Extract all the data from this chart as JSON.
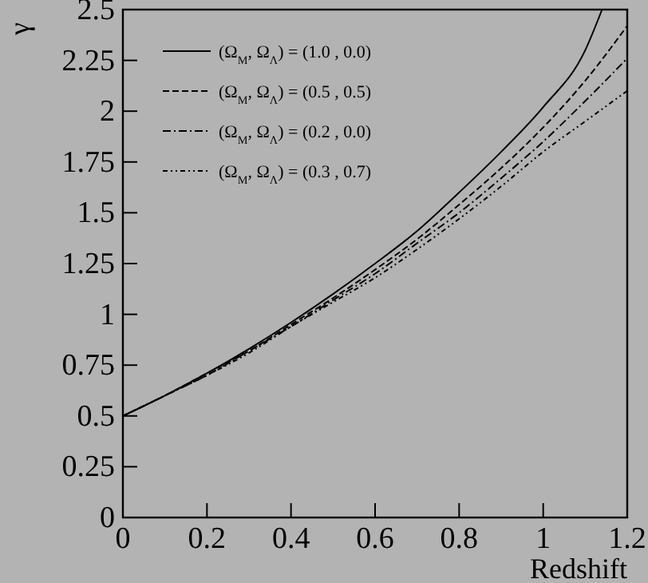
{
  "chart_data": {
    "type": "line",
    "xlabel": "Redshift",
    "ylabel": "γ",
    "xlim": [
      0,
      1.2
    ],
    "ylim": [
      0,
      2.5
    ],
    "xticks": [
      0,
      0.2,
      0.4,
      0.6,
      0.8,
      1,
      1.2
    ],
    "yticks": [
      0,
      0.25,
      0.5,
      0.75,
      1,
      1.25,
      1.5,
      1.75,
      2,
      2.25,
      2.5
    ],
    "x": [
      0,
      0.1,
      0.2,
      0.3,
      0.4,
      0.5,
      0.6,
      0.7,
      0.8,
      0.9,
      1.0,
      1.1,
      1.2
    ],
    "legend": "top left",
    "grid": false,
    "marker": "none",
    "series": [
      {
        "name": "(Ω$_{M}$, Ω$_{Λ}$) = (1.0 , 0.0)",
        "color": "#000000",
        "line_style": "solid",
        "x": [
          0,
          0.1,
          0.2,
          0.3,
          0.4,
          0.5,
          0.6,
          0.7,
          0.8,
          0.9,
          1.0,
          1.1,
          1.14
        ],
        "values": [
          0.5,
          0.6,
          0.71,
          0.83,
          0.96,
          1.1,
          1.25,
          1.41,
          1.6,
          1.8,
          2.02,
          2.3,
          2.5
        ]
      },
      {
        "name": "(Ω$_{M}$, Ω$_{Λ}$) = (0.5 , 0.5)",
        "color": "#000000",
        "line_style": "dashed",
        "values": [
          0.5,
          0.6,
          0.71,
          0.82,
          0.95,
          1.08,
          1.22,
          1.37,
          1.54,
          1.72,
          1.92,
          2.15,
          2.42
        ]
      },
      {
        "name": "(Ω$_{M}$, Ω$_{Λ}$) = (0.2 , 0.0)",
        "color": "#000000",
        "line_style": "dashdot",
        "values": [
          0.5,
          0.6,
          0.7,
          0.82,
          0.94,
          1.07,
          1.2,
          1.35,
          1.5,
          1.67,
          1.85,
          2.05,
          2.26
        ]
      },
      {
        "name": "(Ω$_{M}$, Ω$_{Λ}$) = (0.3 , 0.7)",
        "color": "#000000",
        "line_style": "dotted",
        "values": [
          0.5,
          0.6,
          0.7,
          0.81,
          0.94,
          1.06,
          1.18,
          1.32,
          1.47,
          1.63,
          1.8,
          1.95,
          2.1
        ]
      }
    ]
  }
}
